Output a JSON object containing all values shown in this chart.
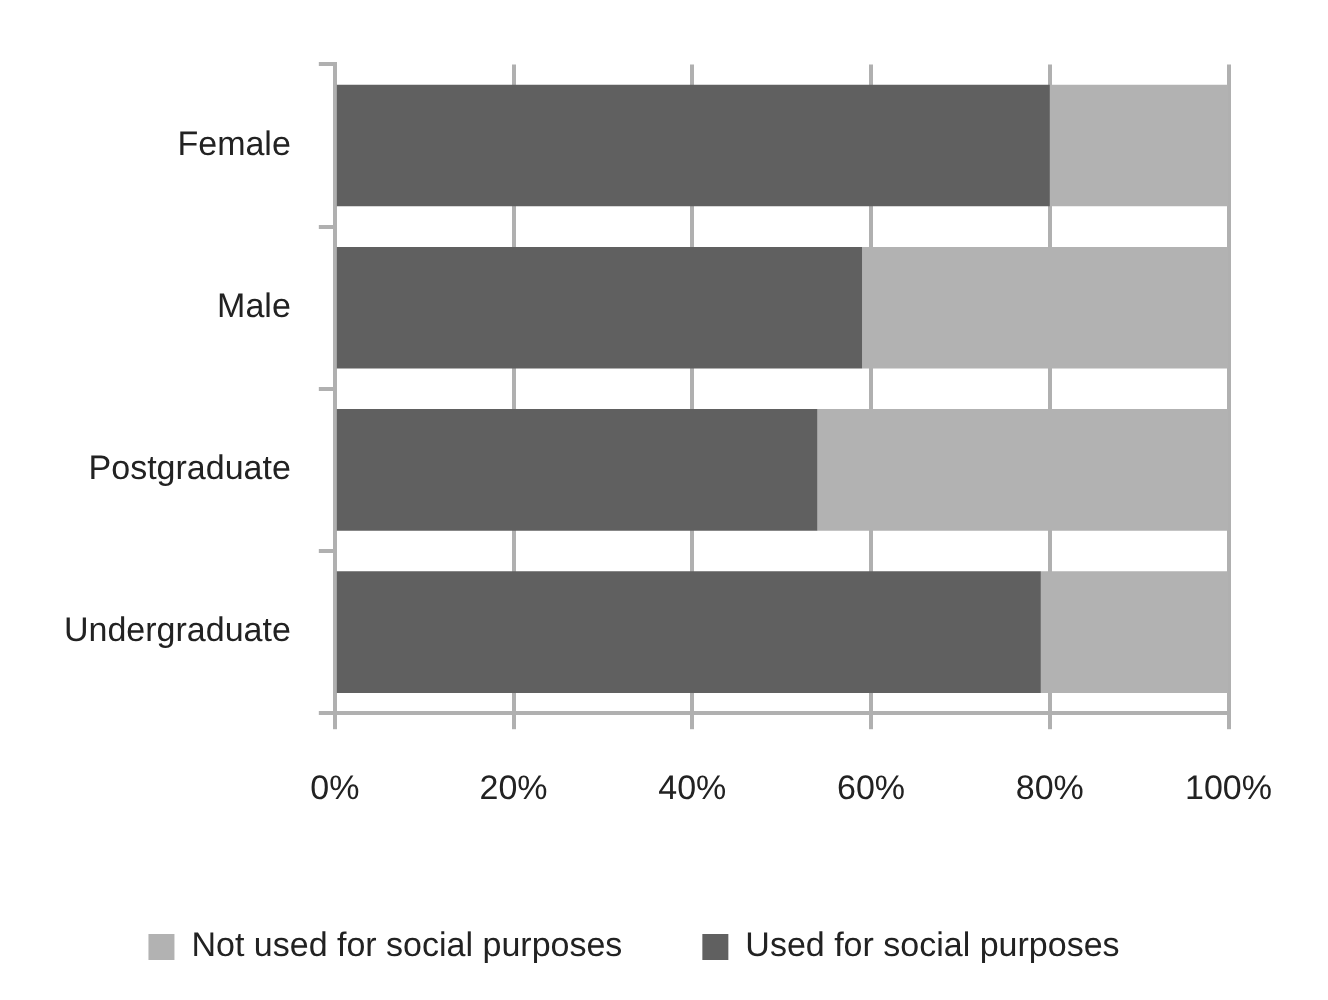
{
  "chart_data": {
    "type": "bar",
    "orientation": "horizontal",
    "stacked": true,
    "categories": [
      "Female",
      "Male",
      "Postgraduate",
      "Undergraduate"
    ],
    "series": [
      {
        "name": "Used for social purposes",
        "color": "#606060",
        "values": [
          80,
          59,
          54,
          79
        ]
      },
      {
        "name": "Not used for social purposes",
        "color": "#b2b2b2",
        "values": [
          20,
          41,
          46,
          21
        ]
      }
    ],
    "xlim": [
      0,
      100
    ],
    "xticks": [
      {
        "value": 0,
        "label": "0%"
      },
      {
        "value": 20,
        "label": "20%"
      },
      {
        "value": 40,
        "label": "40%"
      },
      {
        "value": 60,
        "label": "60%"
      },
      {
        "value": 80,
        "label": "80%"
      },
      {
        "value": 100,
        "label": "100%"
      }
    ],
    "grid": "x",
    "legend": "bottom"
  }
}
